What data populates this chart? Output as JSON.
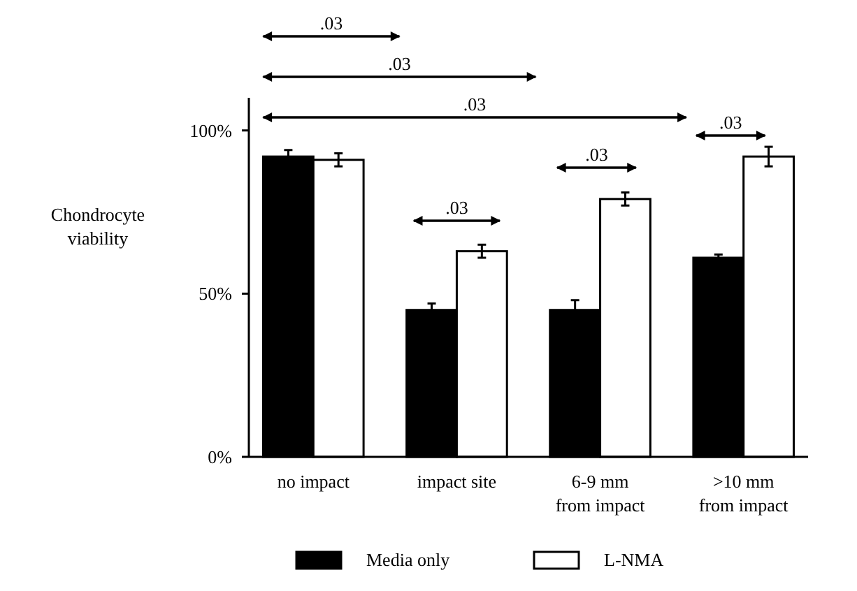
{
  "chart_data": {
    "type": "bar",
    "ylabel": "Chondrocyte viability",
    "categories": [
      "no impact",
      "impact site",
      "6-9 mm\nfrom impact",
      ">10 mm\nfrom impact"
    ],
    "series": [
      {
        "name": "Media only",
        "color": "#000000",
        "values": [
          92,
          45,
          45,
          61
        ],
        "errors": [
          2,
          2,
          3,
          1
        ]
      },
      {
        "name": "L-NMA",
        "color": "#ffffff",
        "values": [
          91,
          63,
          79,
          92
        ],
        "errors": [
          2,
          2,
          2,
          3
        ]
      }
    ],
    "ylim": [
      0,
      110
    ],
    "yticks": [
      {
        "value": 0,
        "label": "0%"
      },
      {
        "value": 50,
        "label": "50%"
      },
      {
        "value": 100,
        "label": "100%"
      }
    ],
    "annotations": [
      ".03",
      ".03",
      ".03",
      ".03",
      ".03",
      ".03"
    ],
    "legend": "bottom"
  }
}
